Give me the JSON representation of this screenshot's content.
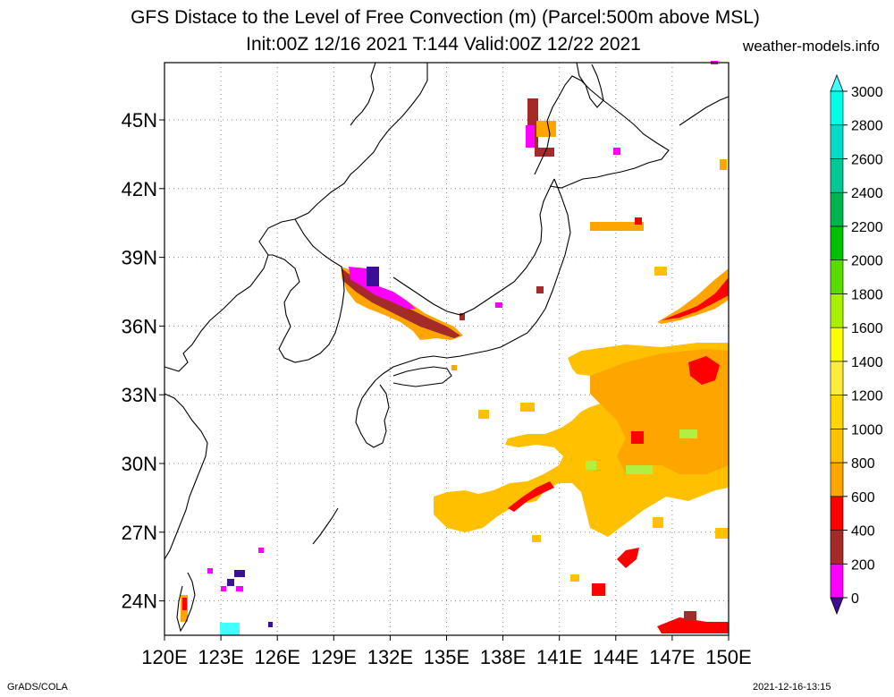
{
  "header": {
    "title_line1": "GFS Distace to the Level of Free Convection (m) (Parcel:500m above MSL)",
    "title_line2": "Init:00Z 12/16 2021 T:144 Valid:00Z 12/22 2021",
    "site": "weather-models.info"
  },
  "footer": {
    "left": "GrADS/COLA",
    "right": "2021-12-16-13:15"
  },
  "map": {
    "lon_range": [
      120,
      150
    ],
    "lat_range": [
      22.5,
      47.5
    ],
    "lon_labels": [
      "120E",
      "123E",
      "126E",
      "129E",
      "132E",
      "135E",
      "138E",
      "141E",
      "144E",
      "147E",
      "150E"
    ],
    "lat_labels": [
      "24N",
      "27N",
      "30N",
      "33N",
      "36N",
      "39N",
      "42N",
      "45N"
    ],
    "lon_ticks": [
      120,
      123,
      126,
      129,
      132,
      135,
      138,
      141,
      144,
      147,
      150
    ],
    "lat_ticks": [
      24,
      27,
      30,
      33,
      36,
      39,
      42,
      45
    ],
    "gridlines": "dotted"
  },
  "colorbar": {
    "labels": [
      "0",
      "200",
      "400",
      "600",
      "800",
      "1000",
      "1200",
      "1400",
      "1600",
      "1800",
      "2000",
      "2200",
      "2400",
      "2600",
      "2800",
      "3000"
    ],
    "colors": [
      "#3b0f96",
      "#ff00ff",
      "#a52a2a",
      "#ff0000",
      "#ffa500",
      "#ffc000",
      "#ffd700",
      "#ffeb3b",
      "#ffff00",
      "#a8f000",
      "#5adc00",
      "#00c000",
      "#00b450",
      "#00c894",
      "#00dcc8",
      "#00ffe6",
      "#40ffff"
    ],
    "ends": "triangular"
  },
  "palette": {
    "orange": "#ffa500",
    "yellow_orange": "#ffc400",
    "light_yellow": "#ffd83a",
    "red": "#ff0000",
    "brown": "#a52a2a",
    "magenta": "#ff00ff",
    "purple": "#3b0f96",
    "light_green": "#b0f040",
    "cyan": "#40ffff"
  }
}
